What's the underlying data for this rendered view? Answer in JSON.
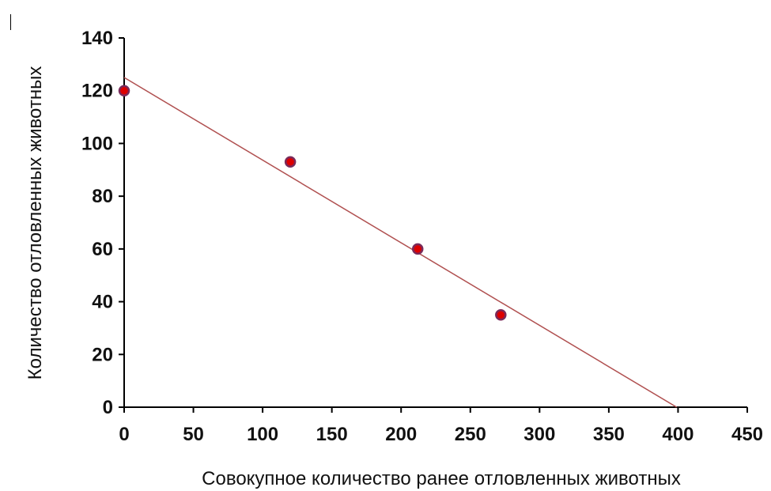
{
  "chart_data": {
    "type": "scatter",
    "title": "",
    "xlabel": "Совокупное количество ранее отловленных животных",
    "ylabel": "Количество отловленных животных",
    "xlim": [
      0,
      450
    ],
    "ylim": [
      0,
      140
    ],
    "x_ticks": [
      "0",
      "50",
      "100",
      "150",
      "200",
      "250",
      "300",
      "350",
      "400",
      "450"
    ],
    "y_ticks": [
      "0",
      "20",
      "40",
      "60",
      "80",
      "100",
      "120",
      "140"
    ],
    "grid": false,
    "legend": "none",
    "points": [
      {
        "x": 0,
        "y": 120
      },
      {
        "x": 120,
        "y": 93
      },
      {
        "x": 212,
        "y": 60
      },
      {
        "x": 272,
        "y": 35
      }
    ],
    "trendline": {
      "x": [
        0,
        399
      ],
      "y": [
        125,
        0
      ]
    },
    "colors": {
      "point_fill": "#dd0000",
      "point_stroke": "#7a2a5a",
      "trendline": "#b05050",
      "axis": "#000000"
    }
  }
}
